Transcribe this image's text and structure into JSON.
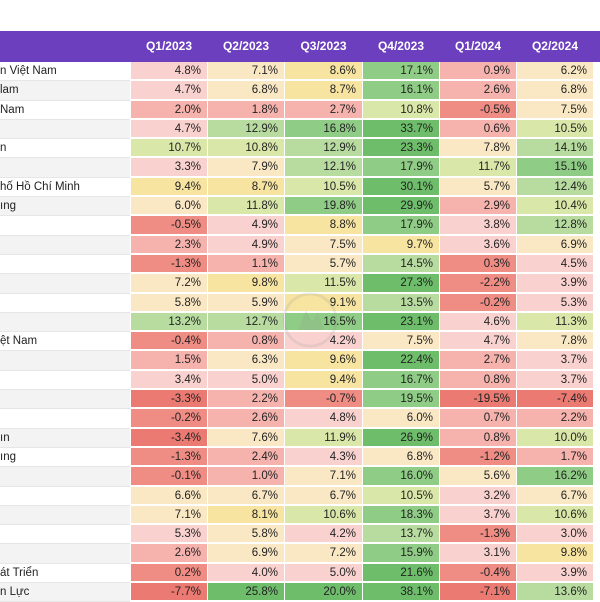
{
  "columns": [
    "Q1/2023",
    "Q2/2023",
    "Q3/2023",
    "Q4/2023",
    "Q1/2024",
    "Q2/2024"
  ],
  "rows": [
    {
      "name": "n Việt Nam",
      "values": [
        "4.8%",
        "7.1%",
        "8.6%",
        "17.1%",
        "0.9%",
        "6.2%"
      ]
    },
    {
      "name": "lam",
      "values": [
        "4.7%",
        "6.8%",
        "8.7%",
        "16.1%",
        "2.6%",
        "6.8%"
      ]
    },
    {
      "name": "Nam",
      "values": [
        "2.0%",
        "1.8%",
        "2.7%",
        "10.8%",
        "-0.5%",
        "7.5%"
      ]
    },
    {
      "name": "",
      "values": [
        "4.7%",
        "12.9%",
        "16.8%",
        "33.7%",
        "0.6%",
        "10.5%"
      ]
    },
    {
      "name": "n",
      "values": [
        "10.7%",
        "10.8%",
        "12.9%",
        "23.3%",
        "7.8%",
        "14.1%"
      ]
    },
    {
      "name": "",
      "values": [
        "3.3%",
        "7.9%",
        "12.1%",
        "17.9%",
        "11.7%",
        "15.1%"
      ]
    },
    {
      "name": "hố Hồ Chí Minh",
      "values": [
        "9.4%",
        "8.7%",
        "10.5%",
        "30.1%",
        "5.7%",
        "12.4%"
      ]
    },
    {
      "name": "ıng",
      "values": [
        "6.0%",
        "11.8%",
        "19.8%",
        "29.9%",
        "2.9%",
        "10.4%"
      ]
    },
    {
      "name": "",
      "values": [
        "-0.5%",
        "4.9%",
        "8.8%",
        "17.9%",
        "3.8%",
        "12.8%"
      ]
    },
    {
      "name": "",
      "values": [
        "2.3%",
        "4.9%",
        "7.5%",
        "9.7%",
        "3.6%",
        "6.9%"
      ]
    },
    {
      "name": "",
      "values": [
        "-1.3%",
        "1.1%",
        "5.7%",
        "14.5%",
        "0.3%",
        "4.5%"
      ]
    },
    {
      "name": "",
      "values": [
        "7.2%",
        "9.8%",
        "11.5%",
        "27.3%",
        "-2.2%",
        "3.9%"
      ]
    },
    {
      "name": "",
      "values": [
        "5.8%",
        "5.9%",
        "9.1%",
        "13.5%",
        "-0.2%",
        "5.3%"
      ]
    },
    {
      "name": "",
      "values": [
        "13.2%",
        "12.7%",
        "16.5%",
        "23.1%",
        "4.6%",
        "11.3%"
      ]
    },
    {
      "name": "ệt Nam",
      "values": [
        "-0.4%",
        "0.8%",
        "4.2%",
        "7.5%",
        "4.7%",
        "7.8%"
      ]
    },
    {
      "name": "",
      "values": [
        "1.5%",
        "6.3%",
        "9.6%",
        "22.4%",
        "2.7%",
        "3.7%"
      ]
    },
    {
      "name": "",
      "values": [
        "3.4%",
        "5.0%",
        "9.4%",
        "16.7%",
        "0.8%",
        "3.7%"
      ]
    },
    {
      "name": "",
      "values": [
        "-3.3%",
        "2.2%",
        "-0.7%",
        "19.5%",
        "-19.5%",
        "-7.4%"
      ]
    },
    {
      "name": "",
      "values": [
        "-0.2%",
        "2.6%",
        "4.8%",
        "6.0%",
        "0.7%",
        "2.2%"
      ]
    },
    {
      "name": "ın",
      "values": [
        "-3.4%",
        "7.6%",
        "11.9%",
        "26.9%",
        "0.8%",
        "10.0%"
      ]
    },
    {
      "name": "ıng",
      "values": [
        "-1.3%",
        "2.4%",
        "4.3%",
        "6.8%",
        "-1.2%",
        "1.7%"
      ]
    },
    {
      "name": "",
      "values": [
        "-0.1%",
        "1.0%",
        "7.1%",
        "16.0%",
        "5.6%",
        "16.2%"
      ]
    },
    {
      "name": "",
      "values": [
        "6.6%",
        "6.7%",
        "6.7%",
        "10.5%",
        "3.2%",
        "6.7%"
      ]
    },
    {
      "name": "",
      "values": [
        "7.1%",
        "8.1%",
        "10.6%",
        "18.3%",
        "3.7%",
        "10.6%"
      ]
    },
    {
      "name": "",
      "values": [
        "5.3%",
        "5.8%",
        "4.2%",
        "13.7%",
        "-1.3%",
        "3.0%"
      ]
    },
    {
      "name": "",
      "values": [
        "2.6%",
        "6.9%",
        "7.2%",
        "15.9%",
        "3.1%",
        "9.8%"
      ]
    },
    {
      "name": "át Triển",
      "values": [
        "0.2%",
        "4.0%",
        "5.0%",
        "21.6%",
        "-0.4%",
        "3.9%"
      ]
    },
    {
      "name": "n Lực",
      "values": [
        "-7.7%",
        "25.8%",
        "20.0%",
        "38.1%",
        "-7.1%",
        "13.6%"
      ]
    }
  ]
}
